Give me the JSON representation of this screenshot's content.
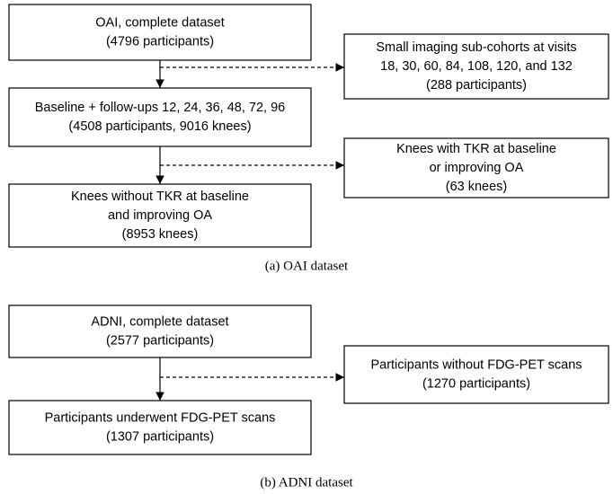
{
  "diagrams": [
    {
      "nodes": [
        {
          "lines": [
            "OAI, complete dataset",
            "(4796 participants)"
          ]
        },
        {
          "lines": [
            "Small imaging sub-cohorts at visits",
            "18, 30, 60, 84, 108, 120, and 132",
            "(288 participants)"
          ]
        },
        {
          "lines": [
            "Baseline + follow-ups 12, 24, 36, 48, 72, 96",
            "(4508 participants, 9016 knees)"
          ]
        },
        {
          "lines": [
            "Knees with TKR at baseline",
            "or improving OA",
            "(63 knees)"
          ]
        },
        {
          "lines": [
            "Knees without TKR at baseline",
            "and improving OA",
            "(8953 knees)"
          ]
        }
      ],
      "caption": "(a) OAI dataset"
    },
    {
      "nodes": [
        {
          "lines": [
            "ADNI, complete dataset",
            "(2577 participants)"
          ]
        },
        {
          "lines": [
            "Participants without FDG-PET scans",
            "(1270 participants)"
          ]
        },
        {
          "lines": [
            "Participants underwent FDG-PET scans",
            "(1307 participants)"
          ]
        }
      ],
      "caption": "(b) ADNI dataset"
    }
  ]
}
